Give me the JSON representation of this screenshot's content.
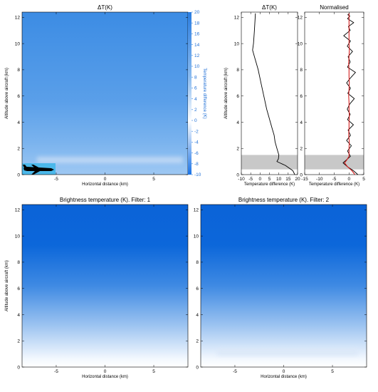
{
  "chart_data": [
    {
      "id": "dt",
      "type": "heatmap",
      "title": "ΔT(K)",
      "xlabel": "Horizontal distance (km)",
      "ylabel": "Altitude above aircraft (km)",
      "xlim": [
        -8.5,
        8.5
      ],
      "ylim": [
        0,
        12.4
      ],
      "xticks": [
        -5,
        0,
        5
      ],
      "yticks": [
        0,
        2,
        4,
        6,
        8,
        10,
        12
      ],
      "colorbar": {
        "label": "Temperature difference (K)",
        "range": [
          -10,
          20
        ],
        "ticks": [
          -10,
          -8,
          -6,
          -4,
          -2,
          0,
          2,
          4,
          6,
          8,
          10,
          12,
          14,
          16,
          18,
          20
        ],
        "colors": [
          "#1a73e6",
          "#ffffff",
          "#2a7de1"
        ]
      },
      "features": {
        "aircraft_icon": "airplane-icon",
        "low_band_altitude_km": [
          0.8,
          1.4
        ]
      }
    },
    {
      "id": "profile",
      "type": "line",
      "title": "ΔT(K)",
      "xlabel": "Temperature difference (K)",
      "ylabel": "Altitude above aircraft (km)",
      "xlim": [
        -10,
        20
      ],
      "ylim": [
        0,
        12.4
      ],
      "xticks": [
        -10,
        -5,
        0,
        5,
        10,
        15,
        20
      ],
      "yticks": [
        0,
        2,
        4,
        6,
        8,
        10,
        12
      ],
      "shaded_altitude_km": [
        0.4,
        1.5
      ],
      "series": [
        {
          "color": "#000000",
          "x": [
            18.5,
            17.5,
            15.5,
            13.5,
            12.0,
            10.5,
            9.0,
            9.8,
            10.0,
            9.0,
            8.0,
            7.5,
            6.5,
            5.5,
            4.5,
            3.5,
            2.0,
            0.5,
            -1.0,
            -2.0,
            -3.0,
            -4.0,
            -3.5,
            -3.0,
            -2.5
          ],
          "y": [
            0.0,
            0.3,
            0.5,
            0.7,
            0.8,
            0.9,
            1.0,
            1.2,
            1.5,
            2.0,
            2.5,
            3.0,
            3.5,
            4.0,
            4.5,
            5.0,
            6.0,
            7.0,
            8.0,
            8.5,
            9.0,
            9.5,
            10.0,
            11.0,
            12.3
          ]
        }
      ]
    },
    {
      "id": "normalised",
      "type": "line",
      "title": "Normalised",
      "xlabel": "Temperature difference (K)",
      "xlim": [
        -15,
        5
      ],
      "ylim": [
        0,
        12.4
      ],
      "xticks": [
        -15,
        -10,
        -5,
        0,
        5
      ],
      "yticks": [
        0,
        2,
        4,
        6,
        8,
        10,
        12
      ],
      "shaded_altitude_km": [
        0.4,
        1.5
      ],
      "series": [
        {
          "color": "#000000",
          "x": [
            3.0,
            1.5,
            -0.5,
            -2.0,
            -1.0,
            0.5,
            -0.5,
            0.8,
            -0.8,
            0.5,
            -0.3,
            1.5,
            -0.5,
            0.4,
            -0.6,
            0.3,
            1.8,
            -0.4,
            0.5,
            -0.8,
            0.6,
            2.2,
            -0.5,
            0.4,
            -0.3,
            1.2,
            -0.6,
            0.5,
            -1.8,
            0.4,
            -0.2,
            1.6,
            -0.5,
            0.3,
            -0.4,
            0.2
          ],
          "y": [
            0.0,
            0.3,
            0.6,
            0.9,
            1.1,
            1.4,
            1.8,
            2.2,
            2.6,
            3.0,
            3.4,
            3.8,
            4.2,
            4.6,
            5.0,
            5.4,
            5.8,
            6.2,
            6.6,
            7.0,
            7.4,
            7.8,
            8.2,
            8.6,
            9.0,
            9.4,
            9.8,
            10.2,
            10.6,
            11.0,
            11.3,
            11.6,
            11.9,
            12.1,
            12.2,
            12.3
          ]
        },
        {
          "color": "#d62020",
          "x": [
            2.0,
            1.0,
            -0.5,
            -1.5,
            -0.8,
            0.0,
            0.0,
            0.1,
            -0.1,
            0.0,
            0.0,
            0.1,
            0.0,
            0.0,
            -0.1,
            0.0,
            0.1,
            0.0,
            0.0,
            -0.1,
            0.0,
            0.1,
            0.0,
            0.0,
            0.0,
            0.0
          ],
          "y": [
            0.0,
            0.3,
            0.6,
            0.9,
            1.1,
            1.4,
            2.0,
            2.5,
            3.0,
            3.5,
            4.0,
            4.5,
            5.0,
            5.5,
            6.0,
            6.5,
            7.0,
            7.5,
            8.0,
            8.5,
            9.0,
            9.5,
            10.0,
            11.0,
            11.8,
            12.3
          ]
        }
      ]
    },
    {
      "id": "bt1",
      "type": "heatmap",
      "title": "Brightness temperature (K).  Filter:   1",
      "xlabel": "Horizontal distance (km)",
      "ylabel": "Altitude above aircraft (km)",
      "xlim": [
        -8.5,
        8.5
      ],
      "ylim": [
        0,
        12.4
      ],
      "xticks": [
        -5,
        0,
        5
      ],
      "yticks": [
        0,
        2,
        4,
        6,
        8,
        10,
        12
      ],
      "colors": [
        "#0b63d8",
        "#ffffff"
      ]
    },
    {
      "id": "bt2",
      "type": "heatmap",
      "title": "Brightness temperature (K).  Filter:   2",
      "xlabel": "Horizontal distance (km)",
      "xlim": [
        -8.5,
        8.5
      ],
      "ylim": [
        0,
        12.4
      ],
      "xticks": [
        -5,
        0,
        5
      ],
      "yticks": [
        0,
        2,
        4,
        6,
        8,
        10,
        12
      ],
      "colors": [
        "#0b63d8",
        "#ffffff"
      ],
      "features": {
        "low_band_altitude_km": [
          0.8,
          1.4
        ]
      }
    }
  ]
}
